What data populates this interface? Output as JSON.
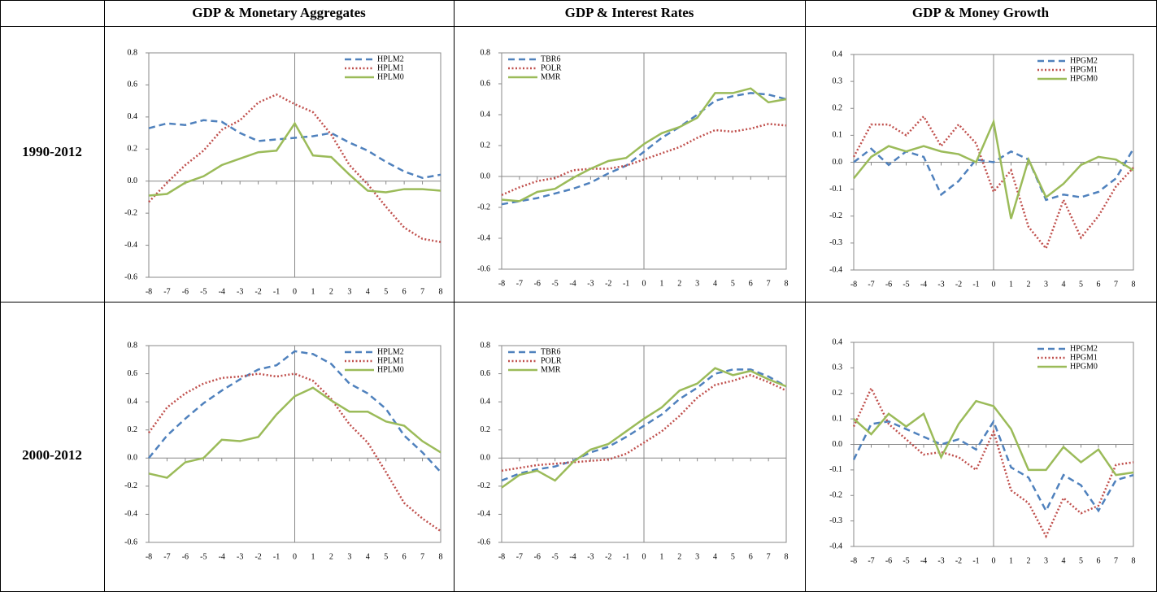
{
  "table": {
    "columns": [
      "GDP & Monetary Aggregates",
      "GDP & Interest Rates",
      "GDP & Money Growth"
    ],
    "rows": [
      "1990-2012",
      "2000-2012"
    ]
  },
  "chart_data": [
    {
      "type": "line",
      "x": [
        -8,
        -7,
        -6,
        -5,
        -4,
        -3,
        -2,
        -1,
        0,
        1,
        2,
        3,
        4,
        5,
        6,
        7,
        8
      ],
      "xlim": [
        -8,
        8
      ],
      "xticks": [
        -8,
        -7,
        -6,
        -5,
        -4,
        -3,
        -2,
        -1,
        0,
        1,
        2,
        3,
        4,
        5,
        6,
        7,
        8
      ],
      "ylim": [
        -0.6,
        0.8
      ],
      "yticks": [
        -0.6,
        -0.4,
        -0.2,
        {
          "value": 0,
          "label": "0.0"
        },
        0.2,
        0.4,
        0.6,
        0.8
      ],
      "legend": "upper right",
      "series": [
        {
          "name": "HPLM2",
          "color": "#4f81bd",
          "dash": "dashed",
          "values": [
            0.33,
            0.36,
            0.35,
            0.38,
            0.37,
            0.3,
            0.25,
            0.26,
            0.27,
            0.28,
            0.3,
            0.24,
            0.19,
            0.12,
            0.06,
            0.02,
            0.04
          ]
        },
        {
          "name": "HPLM1",
          "color": "#c0504d",
          "dash": "dotted",
          "values": [
            -0.13,
            -0.01,
            0.1,
            0.19,
            0.32,
            0.38,
            0.49,
            0.54,
            0.48,
            0.43,
            0.29,
            0.1,
            -0.02,
            -0.16,
            -0.29,
            -0.36,
            -0.38
          ]
        },
        {
          "name": "HPLM0",
          "color": "#9bbb59",
          "dash": "solid",
          "values": [
            -0.09,
            -0.08,
            -0.01,
            0.03,
            0.1,
            0.14,
            0.18,
            0.19,
            0.36,
            0.16,
            0.15,
            0.04,
            -0.06,
            -0.07,
            -0.05,
            -0.05,
            -0.06
          ]
        }
      ]
    },
    {
      "type": "line",
      "x": [
        -8,
        -7,
        -6,
        -5,
        -4,
        -3,
        -2,
        -1,
        0,
        1,
        2,
        3,
        4,
        5,
        6,
        7,
        8
      ],
      "xlim": [
        -8,
        8
      ],
      "xticks": [
        -8,
        -7,
        -6,
        -5,
        -4,
        -3,
        -2,
        -1,
        0,
        1,
        2,
        3,
        4,
        5,
        6,
        7,
        8
      ],
      "ylim": [
        -0.6,
        0.8
      ],
      "yticks": [
        -0.6,
        -0.4,
        -0.2,
        {
          "value": 0,
          "label": "0.0"
        },
        0.2,
        0.4,
        0.6,
        0.8
      ],
      "legend": "upper left",
      "series": [
        {
          "name": "TBR6",
          "color": "#4f81bd",
          "dash": "dashed",
          "values": [
            -0.18,
            -0.16,
            -0.14,
            -0.11,
            -0.08,
            -0.04,
            0.02,
            0.07,
            0.16,
            0.25,
            0.32,
            0.4,
            0.49,
            0.52,
            0.54,
            0.53,
            0.5
          ]
        },
        {
          "name": "POLR",
          "color": "#c0504d",
          "dash": "dotted",
          "values": [
            -0.12,
            -0.07,
            -0.03,
            -0.01,
            0.04,
            0.05,
            0.05,
            0.07,
            0.11,
            0.15,
            0.19,
            0.25,
            0.3,
            0.29,
            0.31,
            0.34,
            0.33
          ]
        },
        {
          "name": "MMR",
          "color": "#9bbb59",
          "dash": "solid",
          "values": [
            -0.15,
            -0.16,
            -0.1,
            -0.08,
            -0.01,
            0.05,
            0.1,
            0.12,
            0.21,
            0.28,
            0.32,
            0.38,
            0.54,
            0.54,
            0.57,
            0.48,
            0.5
          ]
        }
      ]
    },
    {
      "type": "line",
      "x": [
        -8,
        -7,
        -6,
        -5,
        -4,
        -3,
        -2,
        -1,
        0,
        1,
        2,
        3,
        4,
        5,
        6,
        7,
        8
      ],
      "xlim": [
        -8,
        8
      ],
      "xticks": [
        -8,
        -7,
        -6,
        -5,
        -4,
        -3,
        -2,
        -1,
        0,
        1,
        2,
        3,
        4,
        5,
        6,
        7,
        8
      ],
      "ylim": [
        -0.4,
        0.4
      ],
      "yticks": [
        -0.4,
        -0.3,
        -0.2,
        -0.1,
        {
          "value": 0,
          "label": "0.0"
        },
        0.1,
        0.2,
        0.3,
        0.4
      ],
      "legend": "upper right",
      "series": [
        {
          "name": "HPGM2",
          "color": "#4f81bd",
          "dash": "dashed",
          "values": [
            0.0,
            0.05,
            -0.01,
            0.04,
            0.02,
            -0.12,
            -0.07,
            0.01,
            0.0,
            0.04,
            0.01,
            -0.14,
            -0.12,
            -0.13,
            -0.11,
            -0.06,
            0.05
          ]
        },
        {
          "name": "HPGM1",
          "color": "#c0504d",
          "dash": "dotted",
          "values": [
            0.02,
            0.14,
            0.14,
            0.1,
            0.17,
            0.06,
            0.14,
            0.07,
            -0.11,
            -0.03,
            -0.24,
            -0.32,
            -0.14,
            -0.28,
            -0.2,
            -0.09,
            -0.02
          ]
        },
        {
          "name": "HPGM0",
          "color": "#9bbb59",
          "dash": "solid",
          "values": [
            -0.06,
            0.02,
            0.06,
            0.04,
            0.06,
            0.04,
            0.03,
            0.0,
            0.15,
            -0.21,
            0.01,
            -0.13,
            -0.08,
            -0.01,
            0.02,
            0.01,
            -0.03
          ]
        }
      ]
    },
    {
      "type": "line",
      "x": [
        -8,
        -7,
        -6,
        -5,
        -4,
        -3,
        -2,
        -1,
        0,
        1,
        2,
        3,
        4,
        5,
        6,
        7,
        8
      ],
      "xlim": [
        -8,
        8
      ],
      "xticks": [
        -8,
        -7,
        -6,
        -5,
        -4,
        -3,
        -2,
        -1,
        0,
        1,
        2,
        3,
        4,
        5,
        6,
        7,
        8
      ],
      "ylim": [
        -0.6,
        0.8
      ],
      "yticks": [
        -0.6,
        -0.4,
        -0.2,
        {
          "value": 0,
          "label": "0.0"
        },
        0.2,
        0.4,
        0.6,
        0.8
      ],
      "legend": "upper right",
      "series": [
        {
          "name": "HPLM2",
          "color": "#4f81bd",
          "dash": "dashed",
          "values": [
            0.0,
            0.16,
            0.28,
            0.39,
            0.48,
            0.56,
            0.63,
            0.66,
            0.76,
            0.74,
            0.67,
            0.53,
            0.46,
            0.35,
            0.16,
            0.04,
            -0.1
          ]
        },
        {
          "name": "HPLM1",
          "color": "#c0504d",
          "dash": "dotted",
          "values": [
            0.18,
            0.36,
            0.46,
            0.53,
            0.57,
            0.58,
            0.6,
            0.58,
            0.6,
            0.55,
            0.42,
            0.24,
            0.11,
            -0.1,
            -0.32,
            -0.43,
            -0.52
          ]
        },
        {
          "name": "HPLM0",
          "color": "#9bbb59",
          "dash": "solid",
          "values": [
            -0.11,
            -0.14,
            -0.03,
            0.0,
            0.13,
            0.12,
            0.15,
            0.31,
            0.44,
            0.5,
            0.41,
            0.33,
            0.33,
            0.26,
            0.23,
            0.12,
            0.04
          ]
        }
      ]
    },
    {
      "type": "line",
      "x": [
        -8,
        -7,
        -6,
        -5,
        -4,
        -3,
        -2,
        -1,
        0,
        1,
        2,
        3,
        4,
        5,
        6,
        7,
        8
      ],
      "xlim": [
        -8,
        8
      ],
      "xticks": [
        -8,
        -7,
        -6,
        -5,
        -4,
        -3,
        -2,
        -1,
        0,
        1,
        2,
        3,
        4,
        5,
        6,
        7,
        8
      ],
      "ylim": [
        -0.6,
        0.8
      ],
      "yticks": [
        -0.6,
        -0.4,
        -0.2,
        {
          "value": 0,
          "label": "0.0"
        },
        0.2,
        0.4,
        0.6,
        0.8
      ],
      "legend": "upper left",
      "series": [
        {
          "name": "TBR6",
          "color": "#4f81bd",
          "dash": "dashed",
          "values": [
            -0.16,
            -0.11,
            -0.08,
            -0.06,
            -0.02,
            0.04,
            0.08,
            0.15,
            0.23,
            0.31,
            0.42,
            0.5,
            0.6,
            0.63,
            0.63,
            0.58,
            0.51
          ]
        },
        {
          "name": "POLR",
          "color": "#c0504d",
          "dash": "dotted",
          "values": [
            -0.09,
            -0.07,
            -0.05,
            -0.04,
            -0.03,
            -0.02,
            -0.01,
            0.03,
            0.11,
            0.19,
            0.3,
            0.43,
            0.52,
            0.55,
            0.59,
            0.54,
            0.48
          ]
        },
        {
          "name": "MMR",
          "color": "#9bbb59",
          "dash": "solid",
          "values": [
            -0.21,
            -0.12,
            -0.09,
            -0.16,
            -0.03,
            0.06,
            0.1,
            0.19,
            0.28,
            0.36,
            0.48,
            0.53,
            0.64,
            0.59,
            0.62,
            0.56,
            0.51
          ]
        }
      ]
    },
    {
      "type": "line",
      "x": [
        -8,
        -7,
        -6,
        -5,
        -4,
        -3,
        -2,
        -1,
        0,
        1,
        2,
        3,
        4,
        5,
        6,
        7,
        8
      ],
      "xlim": [
        -8,
        8
      ],
      "xticks": [
        -8,
        -7,
        -6,
        -5,
        -4,
        -3,
        -2,
        -1,
        0,
        1,
        2,
        3,
        4,
        5,
        6,
        7,
        8
      ],
      "ylim": [
        -0.4,
        0.4
      ],
      "yticks": [
        -0.4,
        -0.3,
        -0.2,
        -0.1,
        {
          "value": 0,
          "label": "0.0"
        },
        0.1,
        0.2,
        0.3,
        0.4
      ],
      "legend": "upper right",
      "series": [
        {
          "name": "HPGM2",
          "color": "#4f81bd",
          "dash": "dashed",
          "values": [
            -0.06,
            0.08,
            0.09,
            0.06,
            0.03,
            0.0,
            0.02,
            -0.02,
            0.09,
            -0.09,
            -0.13,
            -0.26,
            -0.12,
            -0.16,
            -0.26,
            -0.14,
            -0.12
          ]
        },
        {
          "name": "HPGM1",
          "color": "#c0504d",
          "dash": "dotted",
          "values": [
            0.07,
            0.22,
            0.08,
            0.02,
            -0.04,
            -0.03,
            -0.05,
            -0.1,
            0.05,
            -0.18,
            -0.23,
            -0.36,
            -0.21,
            -0.27,
            -0.24,
            -0.08,
            -0.07
          ]
        },
        {
          "name": "HPGM0",
          "color": "#9bbb59",
          "dash": "solid",
          "values": [
            0.1,
            0.04,
            0.12,
            0.07,
            0.12,
            -0.05,
            0.08,
            0.17,
            0.15,
            0.06,
            -0.1,
            -0.1,
            -0.01,
            -0.07,
            -0.02,
            -0.12,
            -0.11
          ]
        }
      ]
    }
  ]
}
